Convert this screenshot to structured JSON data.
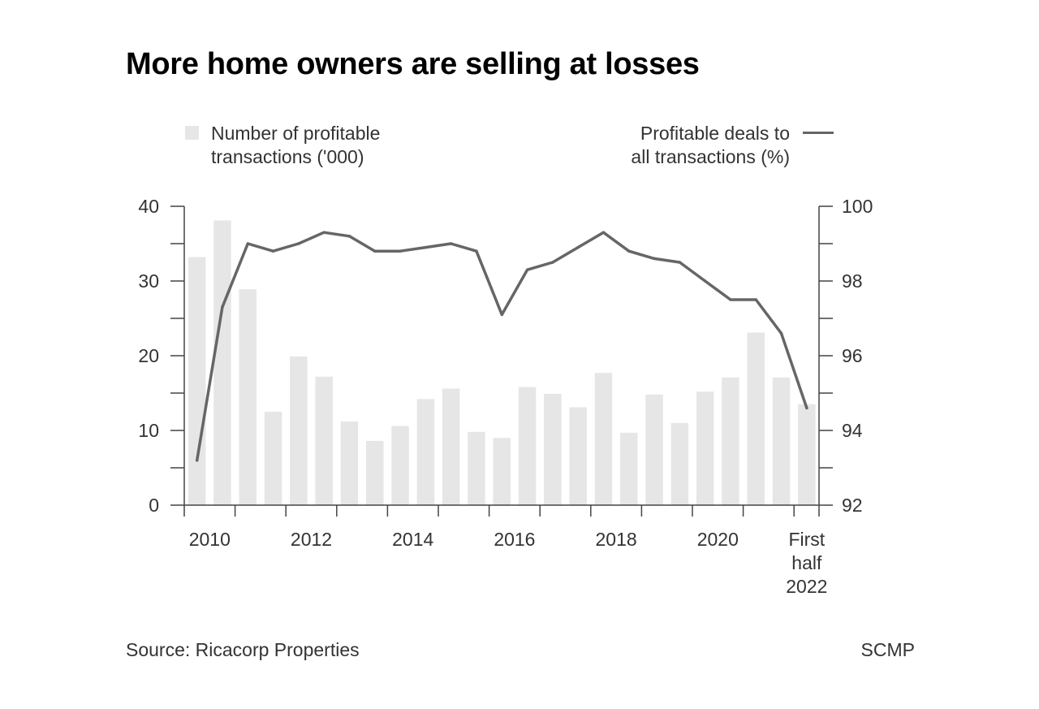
{
  "colors": {
    "bar": "#e6e6e6",
    "line": "#666666",
    "axis": "#444444",
    "text": "#333333"
  },
  "footer": {
    "source": "Source: Ricacorp Properties",
    "brand": "SCMP"
  },
  "chart_data": {
    "type": "bar+line",
    "title": "More home owners are selling at losses",
    "legend": {
      "bar": [
        "Number of profitable",
        "transactions ('000)"
      ],
      "line": [
        "Profitable deals to",
        "all transactions (%)"
      ]
    },
    "x_tick_labels": [
      {
        "index": 0.5,
        "lines": [
          "2010"
        ]
      },
      {
        "index": 4.5,
        "lines": [
          "2012"
        ]
      },
      {
        "index": 8.5,
        "lines": [
          "2014"
        ]
      },
      {
        "index": 12.5,
        "lines": [
          "2016"
        ]
      },
      {
        "index": 16.5,
        "lines": [
          "2018"
        ]
      },
      {
        "index": 20.5,
        "lines": [
          "2020"
        ]
      },
      {
        "index": 24,
        "lines": [
          "First",
          "half",
          "2022"
        ]
      }
    ],
    "bar_series": {
      "name": "Number of profitable transactions ('000)",
      "axis": "left",
      "ylim": [
        0,
        40
      ],
      "ticks": [
        0,
        10,
        20,
        30,
        40
      ],
      "minor_ticks": [
        5,
        15,
        25,
        35
      ],
      "values": [
        33.2,
        38.1,
        28.9,
        12.5,
        19.9,
        17.2,
        11.2,
        8.6,
        10.6,
        14.2,
        15.6,
        9.8,
        9.0,
        15.8,
        14.9,
        13.1,
        17.7,
        9.7,
        14.8,
        11.0,
        15.2,
        17.1,
        23.1,
        17.1,
        13.5
      ]
    },
    "line_series": {
      "name": "Profitable deals to all transactions (%)",
      "axis": "right",
      "ylim": [
        92,
        100
      ],
      "ticks": [
        92,
        94,
        96,
        98,
        100
      ],
      "minor_ticks": [
        93,
        95,
        97,
        99
      ],
      "values": [
        93.2,
        97.3,
        99.0,
        98.8,
        99.0,
        99.3,
        99.2,
        98.8,
        98.8,
        98.9,
        99.0,
        98.8,
        97.1,
        98.3,
        98.5,
        98.9,
        99.3,
        98.8,
        98.6,
        98.5,
        98.0,
        97.5,
        97.5,
        96.6,
        94.6
      ]
    }
  }
}
